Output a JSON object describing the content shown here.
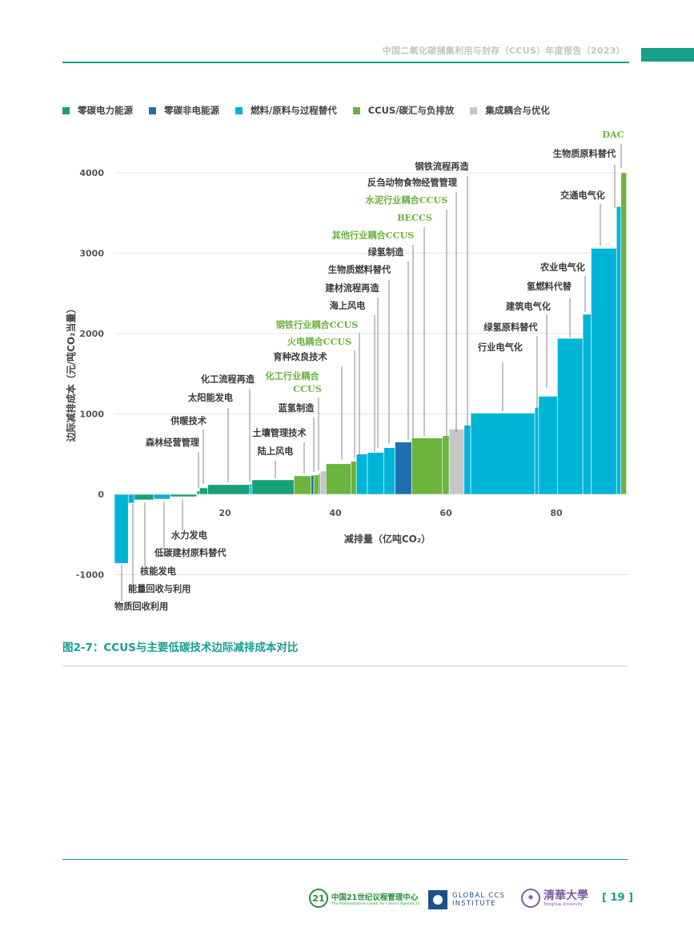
{
  "header": {
    "title": "中国二氧化碳捕集利用与封存（CCUS）年度报告（2023）"
  },
  "legend": [
    {
      "label": "零碳电力能源",
      "color": "#17a07a"
    },
    {
      "label": "零碳非电能源",
      "color": "#1f6fb0"
    },
    {
      "label": "燃料/原料与过程替代",
      "color": "#00b4d8"
    },
    {
      "label": "CCUS/碳汇与负排放",
      "color": "#6cb33f"
    },
    {
      "label": "集成耦合与优化",
      "color": "#c6c6c6"
    }
  ],
  "colors": {
    "power": "#17a07a",
    "nonpower": "#1f6fb0",
    "fuel": "#00b4d8",
    "ccus": "#6cb33f",
    "integration": "#c6c6c6",
    "label_text": "#3a3a3a",
    "label_green": "#6cb33f",
    "accent": "#16a08a"
  },
  "chart_data": {
    "type": "bar",
    "xlabel": "减排量（亿吨CO₂）",
    "ylabel": "边际减排成本（元/吨CO₂当量）",
    "xticks": [
      "20",
      "40",
      "60",
      "80"
    ],
    "yticks": [
      "4000",
      "3000",
      "2000",
      "1000",
      "0",
      "-1000"
    ],
    "xlim": [
      0,
      93
    ],
    "ylim": [
      -1100,
      4000
    ],
    "bars": [
      {
        "label": "物质回收利用",
        "x0": 0,
        "x1": 2.5,
        "value": -860,
        "cat": "fuel"
      },
      {
        "label": "能量回收与利用",
        "x0": 2.5,
        "x1": 3.6,
        "value": -110,
        "cat": "fuel"
      },
      {
        "label": "核能发电",
        "x0": 3.6,
        "x1": 7.1,
        "value": -70,
        "cat": "power"
      },
      {
        "label": "低碳建材原料替代",
        "x0": 7.1,
        "x1": 10.1,
        "value": -60,
        "cat": "fuel"
      },
      {
        "label": "水力发电",
        "x0": 10.1,
        "x1": 14.9,
        "value": -30,
        "cat": "power"
      },
      {
        "label": "森林经营管理",
        "x0": 14.9,
        "x1": 15.4,
        "value": 40,
        "cat": "power"
      },
      {
        "label": "供暖技术",
        "x0": 15.4,
        "x1": 16.9,
        "value": 80,
        "cat": "power"
      },
      {
        "label": "太阳能发电",
        "x0": 16.9,
        "x1": 24.5,
        "value": 120,
        "cat": "power"
      },
      {
        "label": "化工流程再造",
        "x0": 24.5,
        "x1": 24.9,
        "value": 130,
        "cat": "fuel"
      },
      {
        "label": "陆上风电",
        "x0": 24.9,
        "x1": 32.5,
        "value": 180,
        "cat": "power"
      },
      {
        "label": "土壤管理技术",
        "x0": 32.5,
        "x1": 35.6,
        "value": 230,
        "cat": "ccus"
      },
      {
        "label": "蓝氢制造",
        "x0": 35.6,
        "x1": 36.1,
        "value": 235,
        "cat": "nonpower"
      },
      {
        "label": "化工行业耦合CCUS",
        "x0": 36.1,
        "x1": 37.0,
        "value": 240,
        "cat": "ccus"
      },
      {
        "label": "火电耦合CCUS",
        "x0": 37.0,
        "x1": 37.3,
        "value": 260,
        "cat": "ccus"
      },
      {
        "label": "育种改良技术",
        "x0": 37.3,
        "x1": 38.3,
        "value": 290,
        "cat": "integration"
      },
      {
        "label": "海上风电",
        "x0": 38.3,
        "x1": 42.8,
        "value": 380,
        "cat": "ccus"
      },
      {
        "label": "钢铁行业耦合CCUS",
        "x0": 42.8,
        "x1": 43.8,
        "value": 410,
        "cat": "ccus"
      },
      {
        "label": "生物质燃料替代",
        "x0": 43.8,
        "x1": 45.8,
        "value": 500,
        "cat": "fuel"
      },
      {
        "label": "建材流程再造",
        "x0": 45.8,
        "x1": 48.8,
        "value": 520,
        "cat": "fuel"
      },
      {
        "label": "绿氢制造",
        "x0": 48.8,
        "x1": 50.8,
        "value": 580,
        "cat": "fuel"
      },
      {
        "label": "其他行业耦合CCUS",
        "x0": 50.8,
        "x1": 53.8,
        "value": 650,
        "cat": "nonpower"
      },
      {
        "label": "BECCS",
        "x0": 53.8,
        "x1": 59.4,
        "value": 700,
        "cat": "ccus"
      },
      {
        "label": "水泥行业耦合CCUS",
        "x0": 59.4,
        "x1": 60.6,
        "value": 730,
        "cat": "ccus"
      },
      {
        "label": "反刍动物食物经管管理",
        "x0": 60.6,
        "x1": 63.3,
        "value": 810,
        "cat": "integration"
      },
      {
        "label": "钢铁流程再造",
        "x0": 63.3,
        "x1": 64.5,
        "value": 860,
        "cat": "fuel"
      },
      {
        "label": "行业电气化",
        "x0": 64.5,
        "x1": 76.1,
        "value": 1010,
        "cat": "fuel"
      },
      {
        "label": "绿氢原料替代",
        "x0": 76.1,
        "x1": 76.8,
        "value": 1080,
        "cat": "fuel"
      },
      {
        "label": "建筑电气化",
        "x0": 76.8,
        "x1": 80.2,
        "value": 1220,
        "cat": "fuel"
      },
      {
        "label": "氢燃料代替",
        "x0": 80.2,
        "x1": 84.8,
        "value": 1940,
        "cat": "fuel"
      },
      {
        "label": "农业电气化",
        "x0": 84.8,
        "x1": 86.3,
        "value": 2240,
        "cat": "fuel"
      },
      {
        "label": "交通电气化",
        "x0": 86.3,
        "x1": 90.9,
        "value": 3060,
        "cat": "fuel"
      },
      {
        "label": "生物质原料替代",
        "x0": 90.9,
        "x1": 91.7,
        "value": 3580,
        "cat": "fuel"
      },
      {
        "label": "DAC",
        "x0": 91.7,
        "x1": 92.7,
        "value": 4000,
        "cat": "ccus"
      }
    ]
  },
  "caption": "图2-7：CCUS与主要低碳技术边际减排成本对比",
  "footer": {
    "acca_cn": "中国21世纪议程管理中心",
    "acca_en": "The Administrative Center for China's Agenda 21",
    "acca_mark": "21",
    "gcci_line1": "GLOBAL CCS",
    "gcci_line2": "INSTITUTE",
    "tsinghua_cn": "清華大學",
    "tsinghua_en": "Tsinghua University",
    "page_number": "[ 19 ]"
  }
}
